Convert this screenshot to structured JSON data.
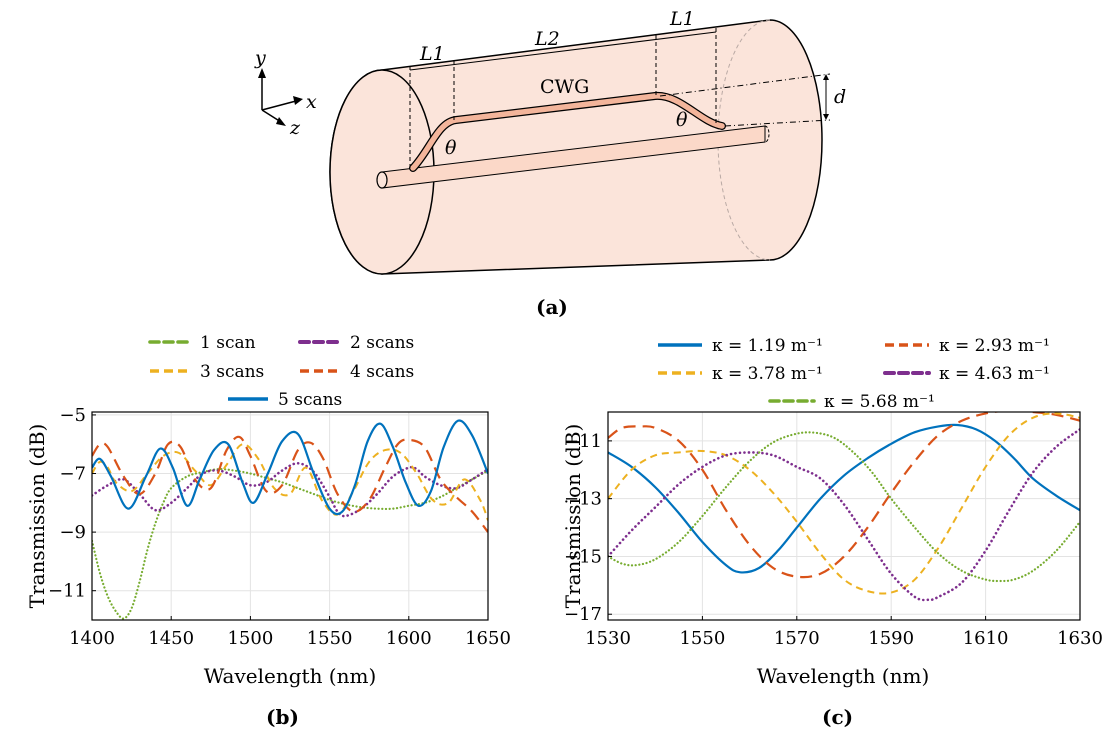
{
  "diagram": {
    "axes": [
      "y",
      "x",
      "z"
    ],
    "dims": {
      "L1_left": "L1",
      "L2": "L2",
      "L1_right": "L1",
      "d": "d"
    },
    "cwg_label": "CWG",
    "theta_left": "θ",
    "theta_right": "θ",
    "panel_label": "(a)"
  },
  "colors": {
    "blue": "#0072bd",
    "orange": "#d95319",
    "yellow": "#edb120",
    "purple": "#7e2f8e",
    "green": "#77ac30",
    "fiber_fill": "#fbe4da",
    "waveguide": "#f3b59b"
  },
  "chart_data": [
    {
      "type": "line",
      "panel_label": "(b)",
      "xlabel": "Wavelength (nm)",
      "ylabel": "Transmission (dB)",
      "xlim": [
        1400,
        1650
      ],
      "ylim": [
        -12,
        -4.9
      ],
      "xticks": [
        1400,
        1450,
        1500,
        1550,
        1600,
        1650
      ],
      "yticks": [
        -11,
        -9,
        -7,
        -5
      ],
      "grid": true,
      "legend_position": "top",
      "series": [
        {
          "name": "1 scan",
          "color": "#77ac30",
          "style": "dotted",
          "x": [
            1400,
            1405,
            1410,
            1415,
            1420,
            1425,
            1430,
            1435,
            1440,
            1445,
            1450,
            1460,
            1470,
            1480,
            1490,
            1500,
            1510,
            1520,
            1530,
            1540,
            1550,
            1560,
            1570,
            1580,
            1590,
            1600,
            1610,
            1620,
            1630,
            1640,
            1650
          ],
          "y": [
            -9.3,
            -10.4,
            -11.2,
            -11.7,
            -11.95,
            -11.6,
            -10.7,
            -9.6,
            -8.7,
            -8.0,
            -7.5,
            -7.1,
            -6.95,
            -6.85,
            -6.9,
            -7.0,
            -7.15,
            -7.3,
            -7.5,
            -7.7,
            -7.9,
            -8.05,
            -8.15,
            -8.2,
            -8.2,
            -8.1,
            -8.0,
            -7.8,
            -7.5,
            -7.2,
            -6.9
          ]
        },
        {
          "name": "2 scans",
          "color": "#7e2f8e",
          "style": "dotted-bold",
          "x": [
            1400,
            1410,
            1420,
            1430,
            1440,
            1450,
            1460,
            1470,
            1480,
            1490,
            1500,
            1510,
            1520,
            1530,
            1540,
            1550,
            1555,
            1560,
            1570,
            1580,
            1590,
            1600,
            1605,
            1610,
            1620,
            1630,
            1640,
            1650
          ],
          "y": [
            -7.75,
            -7.4,
            -7.2,
            -7.7,
            -8.25,
            -8.0,
            -7.5,
            -7.0,
            -6.9,
            -7.1,
            -7.4,
            -7.3,
            -6.9,
            -6.65,
            -6.95,
            -7.8,
            -8.3,
            -8.45,
            -8.2,
            -7.7,
            -7.1,
            -6.8,
            -6.85,
            -7.1,
            -7.4,
            -7.5,
            -7.2,
            -6.85
          ]
        },
        {
          "name": "3 scans",
          "color": "#edb120",
          "style": "dashed",
          "x": [
            1400,
            1405,
            1410,
            1415,
            1425,
            1435,
            1445,
            1455,
            1465,
            1475,
            1485,
            1495,
            1505,
            1515,
            1525,
            1535,
            1545,
            1555,
            1565,
            1575,
            1585,
            1595,
            1605,
            1615,
            1625,
            1635,
            1645,
            1650
          ],
          "y": [
            -7.0,
            -6.6,
            -6.8,
            -7.3,
            -7.6,
            -7.0,
            -6.4,
            -6.3,
            -6.9,
            -7.4,
            -6.7,
            -6.0,
            -6.5,
            -7.5,
            -7.7,
            -6.8,
            -7.9,
            -8.4,
            -7.6,
            -6.6,
            -6.2,
            -6.3,
            -7.0,
            -7.9,
            -8.0,
            -7.2,
            -7.9,
            -8.6
          ]
        },
        {
          "name": "4 scans",
          "color": "#d95319",
          "style": "long-dashed",
          "x": [
            1400,
            1405,
            1410,
            1420,
            1430,
            1440,
            1448,
            1456,
            1465,
            1475,
            1485,
            1493,
            1500,
            1510,
            1520,
            1530,
            1538,
            1546,
            1555,
            1565,
            1575,
            1585,
            1593,
            1600,
            1610,
            1620,
            1630,
            1640,
            1650
          ],
          "y": [
            -6.4,
            -6.0,
            -6.1,
            -7.1,
            -7.7,
            -7.0,
            -6.0,
            -6.1,
            -7.2,
            -7.5,
            -6.2,
            -5.75,
            -6.4,
            -7.6,
            -7.4,
            -6.2,
            -5.95,
            -6.5,
            -7.7,
            -8.3,
            -7.9,
            -6.8,
            -6.0,
            -5.85,
            -6.1,
            -7.2,
            -7.8,
            -8.3,
            -9.0
          ]
        },
        {
          "name": "5 scans",
          "color": "#0072bd",
          "style": "solid-bold",
          "x": [
            1400,
            1405,
            1412,
            1423,
            1434,
            1443,
            1451,
            1460,
            1468,
            1477,
            1486,
            1495,
            1502,
            1511,
            1520,
            1530,
            1540,
            1550,
            1558,
            1566,
            1574,
            1582,
            1590,
            1598,
            1606,
            1614,
            1622,
            1631,
            1640,
            1650
          ],
          "y": [
            -6.8,
            -6.5,
            -7.1,
            -8.2,
            -7.1,
            -6.15,
            -6.8,
            -8.1,
            -7.2,
            -6.2,
            -6.0,
            -7.3,
            -8.0,
            -7.0,
            -5.9,
            -5.65,
            -7.0,
            -8.2,
            -8.3,
            -7.4,
            -5.9,
            -5.3,
            -6.1,
            -7.3,
            -8.1,
            -7.6,
            -6.1,
            -5.2,
            -5.7,
            -7.0
          ]
        }
      ]
    },
    {
      "type": "line",
      "panel_label": "(c)",
      "xlabel": "Wavelength (nm)",
      "ylabel": "Transmission (dB)",
      "xlim": [
        1530,
        1630
      ],
      "ylim": [
        -17.2,
        -10.0
      ],
      "xticks": [
        1530,
        1550,
        1570,
        1590,
        1610,
        1630
      ],
      "yticks": [
        -17,
        -15,
        -13,
        -11
      ],
      "grid": true,
      "legend_position": "top",
      "series": [
        {
          "name": "κ = 1.19 m⁻¹",
          "color": "#0072bd",
          "style": "solid-bold",
          "x": [
            1530,
            1535,
            1540,
            1545,
            1550,
            1555,
            1558,
            1562,
            1566,
            1570,
            1575,
            1580,
            1585,
            1590,
            1595,
            1600,
            1604,
            1608,
            1612,
            1616,
            1620,
            1625,
            1630
          ],
          "y": [
            -11.4,
            -11.9,
            -12.6,
            -13.5,
            -14.5,
            -15.3,
            -15.55,
            -15.4,
            -14.8,
            -14.0,
            -13.0,
            -12.2,
            -11.6,
            -11.1,
            -10.7,
            -10.5,
            -10.45,
            -10.6,
            -11.0,
            -11.6,
            -12.3,
            -12.9,
            -13.4
          ]
        },
        {
          "name": "κ = 2.93 m⁻¹",
          "color": "#d95319",
          "style": "long-dashed",
          "x": [
            1530,
            1533,
            1537,
            1540,
            1545,
            1550,
            1555,
            1560,
            1565,
            1570,
            1575,
            1580,
            1585,
            1590,
            1595,
            1600,
            1605,
            1610,
            1615,
            1620,
            1625,
            1630
          ],
          "y": [
            -10.9,
            -10.55,
            -10.5,
            -10.55,
            -11.0,
            -12.0,
            -13.4,
            -14.6,
            -15.4,
            -15.7,
            -15.6,
            -15.0,
            -14.0,
            -12.8,
            -11.7,
            -10.8,
            -10.3,
            -10.05,
            -9.95,
            -10.0,
            -10.1,
            -10.3
          ]
        },
        {
          "name": "κ = 3.78 m⁻¹",
          "color": "#edb120",
          "style": "dashed",
          "x": [
            1530,
            1535,
            1540,
            1545,
            1550,
            1555,
            1560,
            1565,
            1570,
            1575,
            1580,
            1585,
            1590,
            1595,
            1600,
            1605,
            1610,
            1615,
            1620,
            1625,
            1630
          ],
          "y": [
            -13.0,
            -12.0,
            -11.5,
            -11.4,
            -11.35,
            -11.5,
            -12.0,
            -12.8,
            -13.8,
            -14.9,
            -15.8,
            -16.2,
            -16.25,
            -15.8,
            -14.7,
            -13.3,
            -11.9,
            -10.8,
            -10.2,
            -10.05,
            -10.2
          ]
        },
        {
          "name": "κ = 4.63 m⁻¹",
          "color": "#7e2f8e",
          "style": "dotted-bold",
          "x": [
            1530,
            1535,
            1540,
            1545,
            1550,
            1555,
            1560,
            1565,
            1570,
            1575,
            1580,
            1585,
            1590,
            1595,
            1598,
            1600,
            1605,
            1610,
            1615,
            1620,
            1625,
            1630
          ],
          "y": [
            -15.0,
            -14.1,
            -13.3,
            -12.5,
            -11.9,
            -11.5,
            -11.4,
            -11.5,
            -11.9,
            -12.3,
            -13.2,
            -14.4,
            -15.6,
            -16.4,
            -16.5,
            -16.4,
            -15.9,
            -14.8,
            -13.4,
            -12.1,
            -11.2,
            -10.6
          ]
        },
        {
          "name": "κ = 5.68 m⁻¹",
          "color": "#77ac30",
          "style": "dotted",
          "x": [
            1530,
            1533,
            1536,
            1540,
            1545,
            1550,
            1555,
            1560,
            1565,
            1570,
            1574,
            1578,
            1582,
            1586,
            1590,
            1595,
            1600,
            1605,
            1610,
            1613,
            1616,
            1620,
            1625,
            1630
          ],
          "y": [
            -15.0,
            -15.25,
            -15.3,
            -15.1,
            -14.5,
            -13.6,
            -12.6,
            -11.7,
            -11.05,
            -10.75,
            -10.72,
            -10.9,
            -11.4,
            -12.1,
            -13.0,
            -14.0,
            -14.9,
            -15.5,
            -15.8,
            -15.85,
            -15.8,
            -15.5,
            -14.8,
            -13.8
          ]
        }
      ]
    }
  ]
}
